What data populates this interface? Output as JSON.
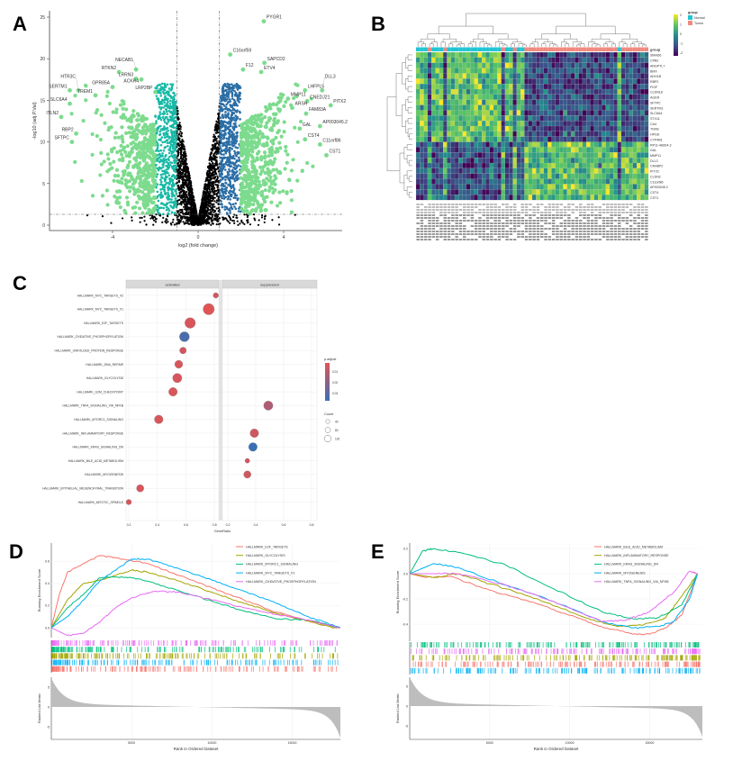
{
  "panel_letters": [
    "A",
    "B",
    "C",
    "D",
    "E"
  ],
  "chart_data": [
    {
      "type": "scatter",
      "subtype": "volcano",
      "xlabel": "log2 (fold change)",
      "ylabel": "-log10 (adj.P.Val)",
      "xticks": [
        -4,
        0,
        4
      ],
      "yticks": [
        0,
        5,
        10,
        15,
        20,
        25
      ],
      "xlim": [
        -7,
        6.8
      ],
      "ylim": [
        0,
        25
      ],
      "logfc_thresholds": [
        -1,
        1
      ],
      "p_threshold_log10": 1.3,
      "colors": {
        "strong": "#7ddb8e",
        "down": "#17b9a6",
        "up": "#2b6ea6",
        "ns": "#000000"
      },
      "labeled_genes": [
        {
          "gene": "PYGR1",
          "x": 3.07,
          "y": 24.5
        },
        {
          "gene": "SERTM1",
          "x": -6.0,
          "y": 16.2
        },
        {
          "gene": "HTR3C",
          "x": -5.6,
          "y": 16.2
        },
        {
          "gene": "SLC6A4",
          "x": -6.0,
          "y": 14.6
        },
        {
          "gene": "ITLN2",
          "x": -6.4,
          "y": 13.0
        },
        {
          "gene": "RBP2",
          "x": -5.7,
          "y": 11.0
        },
        {
          "gene": "SFTPC",
          "x": -5.9,
          "y": 10.0
        },
        {
          "gene": "TREM1",
          "x": -4.8,
          "y": 15.6
        },
        {
          "gene": "GPR85A",
          "x": -4.0,
          "y": 16.6
        },
        {
          "gene": "RTKN2",
          "x": -3.7,
          "y": 18.4
        },
        {
          "gene": "LRRN3",
          "x": -2.9,
          "y": 17.6
        },
        {
          "gene": "NECAB1",
          "x": -2.9,
          "y": 18.7
        },
        {
          "gene": "ACKR4",
          "x": -2.65,
          "y": 17.5
        },
        {
          "gene": "LRP2BP",
          "x": -2.0,
          "y": 16.0
        },
        {
          "gene": "C16orf59",
          "x": 1.5,
          "y": 20.5
        },
        {
          "gene": "SAPCD2",
          "x": 3.1,
          "y": 19.5
        },
        {
          "gene": "F12",
          "x": 2.1,
          "y": 18.7
        },
        {
          "gene": "ETV4",
          "x": 2.95,
          "y": 18.4
        },
        {
          "gene": "MMP11",
          "x": 4.2,
          "y": 15.2
        },
        {
          "gene": "LHFPL5",
          "x": 5.0,
          "y": 16.2
        },
        {
          "gene": "DLL3",
          "x": 5.8,
          "y": 16.2
        },
        {
          "gene": "CNEDJ21",
          "x": 5.1,
          "y": 14.9
        },
        {
          "gene": "PITX2",
          "x": 6.2,
          "y": 14.4
        },
        {
          "gene": "ARSH",
          "x": 4.4,
          "y": 14.1
        },
        {
          "gene": "FAM83A",
          "x": 5.05,
          "y": 13.4
        },
        {
          "gene": "AP003045.2",
          "x": 5.7,
          "y": 11.9
        },
        {
          "gene": "GAL",
          "x": 4.75,
          "y": 11.6
        },
        {
          "gene": "CST4",
          "x": 5.0,
          "y": 10.3
        },
        {
          "gene": "C11orf86",
          "x": 5.7,
          "y": 9.7
        },
        {
          "gene": "CST1",
          "x": 6.0,
          "y": 8.4
        }
      ]
    },
    {
      "type": "heatmap",
      "rows": [
        "SMAD6",
        "CPB2",
        "ANGPTL7",
        "BMX",
        "ADH1B",
        "RBP2",
        "FIGF",
        "CLDN18",
        "AGER",
        "SFTPC",
        "SERTM1",
        "SLC6A4",
        "STX11",
        "CA4",
        "TNXB",
        "HPGD",
        "CYP4B1",
        "RP11-480D4.3",
        "GAL",
        "MMP11",
        "DLL3",
        "CRABP2",
        "PITX2",
        "CLDN2",
        "C11orf86",
        "AP003045.2",
        "CST4",
        "CST1"
      ],
      "rows_high_in_normal": 17,
      "n_columns": 60,
      "annotation_title": "group",
      "groups": [
        {
          "name": "Normal",
          "color": "#22c5d4"
        },
        {
          "name": "Tumor",
          "color": "#f08a80"
        }
      ],
      "scale_ticks": [
        2,
        1,
        0,
        -1,
        -2
      ],
      "scale_colors": [
        "#440154",
        "#3b528b",
        "#21908d",
        "#5dc863",
        "#fde725"
      ]
    },
    {
      "type": "scatter",
      "subtype": "dotplot",
      "facets": [
        "activated",
        "suppressed"
      ],
      "xlabel": "GeneRatio",
      "xticks": [
        0.2,
        0.4,
        0.6,
        0.8
      ],
      "pathways": [
        {
          "name": "HALLMARK_MYC_TARGETS_V2",
          "facet": "activated",
          "x": 0.81,
          "count": 40,
          "padj": 0.012
        },
        {
          "name": "HALLMARK_MYC_TARGETS_V1",
          "facet": "activated",
          "x": 0.76,
          "count": 130,
          "padj": 0.01
        },
        {
          "name": "HALLMARK_E2F_TARGETS",
          "facet": "activated",
          "x": 0.63,
          "count": 120,
          "padj": 0.011
        },
        {
          "name": "HALLMARK_OXIDATIVE_PHOSPHORYLATION",
          "facet": "activated",
          "x": 0.59,
          "count": 110,
          "padj": 0.028
        },
        {
          "name": "HALLMARK_UNFOLDED_PROTEIN_RESPONSE",
          "facet": "activated",
          "x": 0.58,
          "count": 60,
          "padj": 0.012
        },
        {
          "name": "HALLMARK_DNA_REPAIR",
          "facet": "activated",
          "x": 0.55,
          "count": 80,
          "padj": 0.011
        },
        {
          "name": "HALLMARK_GLYCOLYSIS",
          "facet": "activated",
          "x": 0.54,
          "count": 100,
          "padj": 0.011
        },
        {
          "name": "HALLMARK_G2M_CHECKPOINT",
          "facet": "activated",
          "x": 0.51,
          "count": 90,
          "padj": 0.011
        },
        {
          "name": "HALLMARK_TNFA_SIGNALING_VIA_NFKB",
          "facet": "suppressed",
          "x": 0.49,
          "count": 100,
          "padj": 0.016
        },
        {
          "name": "HALLMARK_MTORC1_SIGNALING",
          "facet": "activated",
          "x": 0.41,
          "count": 90,
          "padj": 0.011
        },
        {
          "name": "HALLMARK_INFLAMMATORY_RESPONSE",
          "facet": "suppressed",
          "x": 0.39,
          "count": 90,
          "padj": 0.012
        },
        {
          "name": "HALLMARK_KRAS_SIGNALING_DN",
          "facet": "suppressed",
          "x": 0.38,
          "count": 90,
          "padj": 0.03
        },
        {
          "name": "HALLMARK_BILE_ACID_METABOLISM",
          "facet": "suppressed",
          "x": 0.34,
          "count": 30,
          "padj": 0.012
        },
        {
          "name": "HALLMARK_MYOGENESIS",
          "facet": "suppressed",
          "x": 0.34,
          "count": 70,
          "padj": 0.012
        },
        {
          "name": "HALLMARK_EPITHELIAL_MESENCHYMAL_TRANSITION",
          "facet": "activated",
          "x": 0.28,
          "count": 70,
          "padj": 0.011
        },
        {
          "name": "HALLMARK_MITOTIC_SPINDLE",
          "facet": "activated",
          "x": 0.2,
          "count": 40,
          "padj": 0.011
        }
      ],
      "legend_color_title": "p.adjust",
      "legend_color_ticks": [
        "0.01",
        "0.02",
        "0.03"
      ],
      "legend_size_title": "Count",
      "legend_size_values": [
        "40",
        "80",
        "120"
      ]
    },
    {
      "type": "line",
      "subtype": "gsea",
      "ylabel": "Running Enrichment Score",
      "ylabel2": "Ranked List Metric",
      "xlabel": "Rank in Ordered Dataset",
      "xticks": [
        5000,
        10000,
        15000
      ],
      "yticks": [
        0.0,
        0.2,
        0.4,
        0.6
      ],
      "rl_ticks": [
        5,
        0,
        -5
      ],
      "xlim": [
        0,
        18000
      ],
      "series": [
        {
          "name": "HALLMARK_E2F_TARGETS",
          "color": "#f8766d",
          "points": [
            [
              0,
              0
            ],
            [
              500,
              0.3
            ],
            [
              1000,
              0.5
            ],
            [
              2000,
              0.58
            ],
            [
              3000,
              0.65
            ],
            [
              4000,
              0.63
            ],
            [
              6000,
              0.58
            ],
            [
              8000,
              0.47
            ],
            [
              10000,
              0.36
            ],
            [
              12000,
              0.25
            ],
            [
              14000,
              0.14
            ],
            [
              16000,
              0.06
            ],
            [
              18000,
              0
            ]
          ]
        },
        {
          "name": "HALLMARK_GLYCOLYSIS",
          "color": "#a3a500",
          "points": [
            [
              0,
              0
            ],
            [
              1000,
              0.25
            ],
            [
              2000,
              0.4
            ],
            [
              3500,
              0.45
            ],
            [
              5000,
              0.52
            ],
            [
              6000,
              0.5
            ],
            [
              8000,
              0.42
            ],
            [
              10000,
              0.32
            ],
            [
              12000,
              0.22
            ],
            [
              14000,
              0.13
            ],
            [
              16000,
              0.06
            ],
            [
              17500,
              0
            ],
            [
              18000,
              0
            ]
          ]
        },
        {
          "name": "HALLMARK_MTORC1_SIGNALING",
          "color": "#00bf7d",
          "points": [
            [
              0,
              0
            ],
            [
              1000,
              0.18
            ],
            [
              2000,
              0.3
            ],
            [
              3000,
              0.45
            ],
            [
              4000,
              0.46
            ],
            [
              5000,
              0.45
            ],
            [
              6000,
              0.42
            ],
            [
              8000,
              0.33
            ],
            [
              10000,
              0.24
            ],
            [
              12000,
              0.15
            ],
            [
              14000,
              0.08
            ],
            [
              16000,
              0.07
            ],
            [
              18000,
              0
            ]
          ]
        },
        {
          "name": "HALLMARK_MYC_TARGETS_V1",
          "color": "#00b0f6",
          "points": [
            [
              0,
              0
            ],
            [
              1000,
              0.1
            ],
            [
              2000,
              0.25
            ],
            [
              3000,
              0.42
            ],
            [
              5000,
              0.62
            ],
            [
              6000,
              0.62
            ],
            [
              8000,
              0.53
            ],
            [
              10000,
              0.43
            ],
            [
              12000,
              0.33
            ],
            [
              14000,
              0.22
            ],
            [
              16000,
              0.1
            ],
            [
              18000,
              0
            ]
          ]
        },
        {
          "name": "HALLMARK_OXIDATIVE_PHOSPHORYLATION",
          "color": "#e76bf3",
          "points": [
            [
              0,
              0
            ],
            [
              1000,
              -0.07
            ],
            [
              2000,
              -0.05
            ],
            [
              3000,
              0.05
            ],
            [
              4000,
              0.18
            ],
            [
              5000,
              0.27
            ],
            [
              6500,
              0.33
            ],
            [
              8000,
              0.32
            ],
            [
              10000,
              0.25
            ],
            [
              12000,
              0.18
            ],
            [
              14000,
              0.12
            ],
            [
              16000,
              0.07
            ],
            [
              18000,
              0
            ]
          ]
        }
      ],
      "hit_order": [
        4,
        2,
        1,
        3,
        0
      ]
    },
    {
      "type": "line",
      "subtype": "gsea",
      "ylabel": "Running Enrichment Score",
      "ylabel2": "Ranked List Metric",
      "xlabel": "Rank in Ordered Dataset",
      "xticks": [
        5000,
        10000,
        15000
      ],
      "yticks": [
        0.2,
        0.0,
        -0.2,
        -0.4
      ],
      "rl_ticks": [
        5,
        0,
        -5
      ],
      "xlim": [
        0,
        18300
      ],
      "series": [
        {
          "name": "HALLMARK_BILE_ACID_METABOLISM",
          "color": "#f8766d",
          "points": [
            [
              0,
              0
            ],
            [
              1000,
              -0.03
            ],
            [
              2500,
              -0.02
            ],
            [
              5000,
              -0.13
            ],
            [
              8000,
              -0.24
            ],
            [
              10000,
              -0.33
            ],
            [
              12000,
              -0.42
            ],
            [
              14000,
              -0.48
            ],
            [
              15000,
              -0.48
            ],
            [
              16000,
              -0.43
            ],
            [
              17000,
              -0.33
            ],
            [
              18000,
              0
            ]
          ]
        },
        {
          "name": "HALLMARK_INFLAMMATORY_RESPONSE",
          "color": "#a3a500",
          "points": [
            [
              0,
              0
            ],
            [
              1500,
              -0.03
            ],
            [
              3000,
              0.0
            ],
            [
              5000,
              -0.08
            ],
            [
              8000,
              -0.2
            ],
            [
              11000,
              -0.35
            ],
            [
              13000,
              -0.42
            ],
            [
              14500,
              -0.41
            ],
            [
              16000,
              -0.35
            ],
            [
              17000,
              -0.18
            ],
            [
              18000,
              0
            ]
          ]
        },
        {
          "name": "HALLMARK_KRAS_SIGNALING_DN",
          "color": "#00bf7d",
          "points": [
            [
              0,
              0
            ],
            [
              800,
              0.18
            ],
            [
              1500,
              0.2
            ],
            [
              3000,
              0.17
            ],
            [
              6000,
              0.07
            ],
            [
              9000,
              -0.12
            ],
            [
              12000,
              -0.3
            ],
            [
              14000,
              -0.36
            ],
            [
              15500,
              -0.35
            ],
            [
              17000,
              -0.25
            ],
            [
              18000,
              0
            ]
          ]
        },
        {
          "name": "HALLMARK_MYOGENESIS",
          "color": "#00b0f6",
          "points": [
            [
              0,
              0
            ],
            [
              1500,
              0.08
            ],
            [
              3000,
              0.05
            ],
            [
              6000,
              -0.09
            ],
            [
              9000,
              -0.22
            ],
            [
              12000,
              -0.38
            ],
            [
              14000,
              -0.43
            ],
            [
              15500,
              -0.42
            ],
            [
              16500,
              -0.38
            ],
            [
              17500,
              -0.2
            ],
            [
              18000,
              0
            ]
          ]
        },
        {
          "name": "HALLMARK_TNFA_SIGNALING_VIA_NFKB",
          "color": "#e76bf3",
          "points": [
            [
              0,
              0
            ],
            [
              1500,
              0.0
            ],
            [
              3000,
              0.0
            ],
            [
              6000,
              -0.09
            ],
            [
              9000,
              -0.22
            ],
            [
              12000,
              -0.38
            ],
            [
              13500,
              -0.37
            ],
            [
              15000,
              -0.3
            ],
            [
              16500,
              -0.15
            ],
            [
              17500,
              0.02
            ],
            [
              18000,
              0
            ]
          ]
        }
      ],
      "hit_order": [
        2,
        4,
        1,
        0,
        3
      ]
    }
  ]
}
